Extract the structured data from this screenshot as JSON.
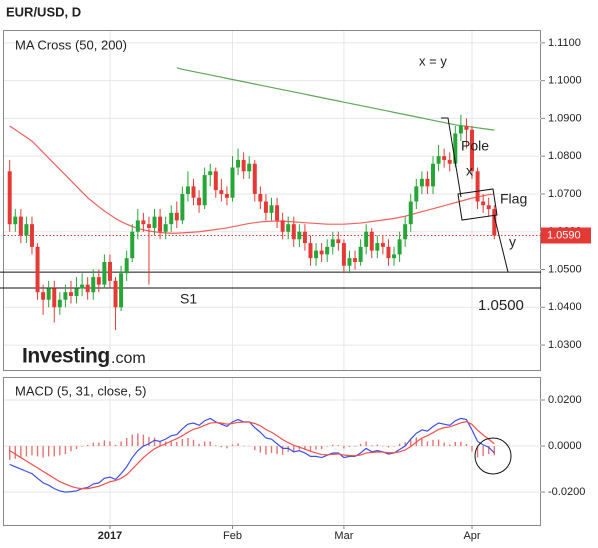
{
  "chart_data": [
    {
      "type": "candlestick",
      "title": "EUR/USD, D",
      "subtitle": "MA Cross (50, 200)",
      "ylim": [
        1.0234,
        1.1134
      ],
      "yticks": [
        {
          "value": 1.03,
          "label": "1.0300"
        },
        {
          "value": 1.04,
          "label": "1.0400"
        },
        {
          "value": 1.05,
          "label": "1.0500"
        },
        {
          "value": 1.06,
          "label": "1.0600"
        },
        {
          "value": 1.07,
          "label": "1.0700"
        },
        {
          "value": 1.08,
          "label": "1.0800"
        },
        {
          "value": 1.09,
          "label": "1.0900"
        },
        {
          "value": 1.1,
          "label": "1.1000"
        },
        {
          "value": 1.11,
          "label": "1.1100"
        }
      ],
      "grid": true,
      "up_color": "#26a637",
      "down_color": "#e53935",
      "candles": {
        "open": [
          1.076,
          1.062,
          1.064,
          1.059,
          1.062,
          1.056,
          1.044,
          1.042,
          1.045,
          1.04,
          1.042,
          1.044,
          1.043,
          1.045,
          1.046,
          1.044,
          1.048,
          1.046,
          1.052,
          1.047,
          1.04,
          1.049,
          1.053,
          1.06,
          1.063,
          1.062,
          1.061,
          1.064,
          1.06,
          1.062,
          1.065,
          1.063,
          1.07,
          1.072,
          1.069,
          1.067,
          1.075,
          1.076,
          1.071,
          1.07,
          1.069,
          1.077,
          1.079,
          1.076,
          1.078,
          1.07,
          1.068,
          1.065,
          1.067,
          1.063,
          1.06,
          1.062,
          1.058,
          1.06,
          1.057,
          1.053,
          1.055,
          1.054,
          1.056,
          1.058,
          1.057,
          1.051,
          1.053,
          1.052,
          1.056,
          1.06,
          1.055,
          1.057,
          1.056,
          1.053,
          1.054,
          1.058,
          1.062,
          1.068,
          1.072,
          1.074,
          1.072,
          1.078,
          1.08,
          1.079,
          1.078,
          1.086,
          1.088,
          1.087,
          1.076,
          1.068,
          1.067,
          1.066
        ],
        "high": [
          1.079,
          1.066,
          1.066,
          1.064,
          1.064,
          1.057,
          1.046,
          1.047,
          1.047,
          1.044,
          1.046,
          1.047,
          1.048,
          1.049,
          1.048,
          1.05,
          1.05,
          1.054,
          1.054,
          1.048,
          1.051,
          1.055,
          1.062,
          1.066,
          1.065,
          1.064,
          1.066,
          1.066,
          1.064,
          1.067,
          1.068,
          1.072,
          1.076,
          1.074,
          1.071,
          1.077,
          1.078,
          1.077,
          1.074,
          1.072,
          1.08,
          1.082,
          1.081,
          1.08,
          1.079,
          1.072,
          1.07,
          1.069,
          1.069,
          1.065,
          1.064,
          1.064,
          1.062,
          1.062,
          1.059,
          1.057,
          1.057,
          1.058,
          1.06,
          1.06,
          1.058,
          1.055,
          1.055,
          1.058,
          1.062,
          1.061,
          1.059,
          1.059,
          1.058,
          1.056,
          1.06,
          1.064,
          1.07,
          1.074,
          1.076,
          1.076,
          1.08,
          1.083,
          1.082,
          1.081,
          1.088,
          1.091,
          1.09,
          1.088,
          1.077,
          1.07,
          1.069,
          1.067
        ],
        "low": [
          1.06,
          1.06,
          1.057,
          1.057,
          1.054,
          1.042,
          1.038,
          1.04,
          1.036,
          1.038,
          1.04,
          1.041,
          1.041,
          1.043,
          1.042,
          1.042,
          1.044,
          1.045,
          1.045,
          1.034,
          1.039,
          1.047,
          1.052,
          1.058,
          1.06,
          1.046,
          1.059,
          1.058,
          1.058,
          1.06,
          1.061,
          1.062,
          1.068,
          1.067,
          1.065,
          1.066,
          1.072,
          1.069,
          1.068,
          1.067,
          1.068,
          1.075,
          1.074,
          1.074,
          1.068,
          1.066,
          1.063,
          1.063,
          1.061,
          1.058,
          1.058,
          1.056,
          1.056,
          1.055,
          1.051,
          1.051,
          1.052,
          1.052,
          1.054,
          1.055,
          1.049,
          1.049,
          1.05,
          1.051,
          1.054,
          1.053,
          1.053,
          1.054,
          1.051,
          1.051,
          1.052,
          1.056,
          1.06,
          1.066,
          1.07,
          1.07,
          1.07,
          1.076,
          1.077,
          1.076,
          1.077,
          1.084,
          1.082,
          1.074,
          1.066,
          1.065,
          1.064,
          1.058
        ],
        "close": [
          1.062,
          1.064,
          1.059,
          1.062,
          1.056,
          1.044,
          1.042,
          1.045,
          1.04,
          1.042,
          1.044,
          1.043,
          1.045,
          1.046,
          1.044,
          1.048,
          1.046,
          1.052,
          1.047,
          1.04,
          1.049,
          1.053,
          1.06,
          1.063,
          1.062,
          1.061,
          1.064,
          1.06,
          1.062,
          1.065,
          1.063,
          1.07,
          1.072,
          1.069,
          1.067,
          1.075,
          1.076,
          1.071,
          1.07,
          1.069,
          1.077,
          1.079,
          1.076,
          1.078,
          1.07,
          1.068,
          1.065,
          1.067,
          1.063,
          1.06,
          1.062,
          1.058,
          1.06,
          1.057,
          1.053,
          1.055,
          1.054,
          1.056,
          1.058,
          1.057,
          1.051,
          1.053,
          1.052,
          1.056,
          1.06,
          1.055,
          1.057,
          1.056,
          1.053,
          1.054,
          1.058,
          1.062,
          1.068,
          1.072,
          1.074,
          1.072,
          1.078,
          1.08,
          1.079,
          1.078,
          1.086,
          1.088,
          1.087,
          1.076,
          1.068,
          1.067,
          1.066,
          1.059
        ]
      },
      "series": [
        {
          "color": "#f0625e",
          "values": [
            1.088,
            1.087,
            1.086,
            1.085,
            1.084,
            1.0825,
            1.081,
            1.0795,
            1.078,
            1.0765,
            1.075,
            1.0735,
            1.072,
            1.0705,
            1.069,
            1.0678,
            1.0666,
            1.0655,
            1.0645,
            1.0635,
            1.0627,
            1.062,
            1.0614,
            1.0609,
            1.0605,
            1.0602,
            1.06,
            1.0598,
            1.0597,
            1.0596,
            1.0596,
            1.0597,
            1.0598,
            1.0599,
            1.06,
            1.0602,
            1.0604,
            1.0606,
            1.0608,
            1.061,
            1.0613,
            1.0616,
            1.0619,
            1.0622,
            1.0624,
            1.0626,
            1.0627,
            1.0628,
            1.0628,
            1.0628,
            1.0627,
            1.0626,
            1.0625,
            1.0624,
            1.0623,
            1.0622,
            1.0621,
            1.062,
            1.062,
            1.062,
            1.062,
            1.0621,
            1.0622,
            1.0623,
            1.0625,
            1.0627,
            1.0629,
            1.0631,
            1.0633,
            1.0635,
            1.0638,
            1.0641,
            1.0645,
            1.0649,
            1.0653,
            1.0657,
            1.0661,
            1.0665,
            1.0669,
            1.0673,
            1.0677,
            1.0681,
            1.0685,
            1.0689,
            1.0692,
            1.0695,
            1.0698,
            1.07
          ]
        },
        {
          "color": "#5fa85a",
          "values": [
            null,
            null,
            null,
            null,
            null,
            null,
            null,
            null,
            null,
            null,
            null,
            null,
            null,
            null,
            null,
            null,
            null,
            null,
            null,
            null,
            null,
            null,
            null,
            null,
            null,
            null,
            null,
            null,
            null,
            null,
            1.1034,
            1.103,
            1.1027,
            1.1024,
            1.1021,
            1.1018,
            1.1015,
            1.1012,
            1.1009,
            1.1006,
            1.1003,
            1.1,
            1.0997,
            1.0994,
            1.0991,
            1.0988,
            1.0985,
            1.0982,
            1.0979,
            1.0976,
            1.0973,
            1.097,
            1.0967,
            1.0964,
            1.0961,
            1.0958,
            1.0955,
            1.0952,
            1.0949,
            1.0946,
            1.0943,
            1.094,
            1.0937,
            1.0934,
            1.0931,
            1.0928,
            1.0925,
            1.0922,
            1.0919,
            1.0916,
            1.0913,
            1.091,
            1.0907,
            1.0904,
            1.0901,
            1.0898,
            1.0895,
            1.0892,
            1.0889,
            1.0886,
            1.0883,
            1.0881,
            1.0879,
            1.0877,
            1.0875,
            1.0873,
            1.0871,
            1.0869
          ]
        }
      ],
      "last_price": {
        "value": 1.059,
        "label": "1.0590",
        "color": "#e53935"
      },
      "levels": [
        1.0493,
        1.0451
      ],
      "annotations": [
        "x = y",
        "Pole",
        "x",
        "Flag",
        "y",
        "S1",
        "1.0500"
      ],
      "brand": {
        "name": "Investing",
        "suffix": ".com"
      }
    },
    {
      "type": "macd",
      "subtitle": "MACD (5, 31, close, 5)",
      "categories": [
        null,
        null,
        null,
        null,
        null,
        null,
        null,
        null,
        null,
        null,
        null,
        null,
        null,
        null,
        null,
        null,
        null,
        null,
        "2017",
        null,
        null,
        null,
        null,
        null,
        null,
        null,
        null,
        null,
        null,
        null,
        null,
        null,
        null,
        null,
        null,
        null,
        null,
        null,
        null,
        null,
        "Feb",
        null,
        null,
        null,
        null,
        null,
        null,
        null,
        null,
        null,
        null,
        null,
        null,
        null,
        null,
        null,
        null,
        null,
        null,
        null,
        "Mar",
        null,
        null,
        null,
        null,
        null,
        null,
        null,
        null,
        null,
        null,
        null,
        null,
        null,
        null,
        null,
        null,
        null,
        null,
        null,
        null,
        null,
        null,
        "Apr",
        null,
        null,
        null,
        null
      ],
      "ylim": [
        -0.0343,
        0.03
      ],
      "yticks": [
        {
          "value": -0.02,
          "label": "-0.0200"
        },
        {
          "value": 0,
          "label": "0.0000"
        },
        {
          "value": 0.02,
          "label": "0.0200"
        }
      ],
      "grid": true,
      "series": [
        {
          "color": "#3f51e8",
          "values": [
            -0.008,
            -0.009,
            -0.01,
            -0.011,
            -0.012,
            -0.014,
            -0.016,
            -0.017,
            -0.0185,
            -0.0195,
            -0.02,
            -0.0198,
            -0.0195,
            -0.0185,
            -0.018,
            -0.0165,
            -0.016,
            -0.014,
            -0.0135,
            -0.0145,
            -0.012,
            -0.009,
            -0.005,
            -0.002,
            0.0,
            0.001,
            0.0025,
            0.002,
            0.003,
            0.0045,
            0.005,
            0.0075,
            0.0095,
            0.01,
            0.009,
            0.011,
            0.012,
            0.0105,
            0.0095,
            0.0085,
            0.0105,
            0.0115,
            0.0105,
            0.0105,
            0.008,
            0.006,
            0.0035,
            0.003,
            0.001,
            -0.001,
            -0.001,
            -0.0025,
            -0.002,
            -0.003,
            -0.0045,
            -0.0045,
            -0.005,
            -0.004,
            -0.003,
            -0.003,
            -0.005,
            -0.0045,
            -0.0045,
            -0.003,
            -0.001,
            -0.0025,
            -0.002,
            -0.0025,
            -0.0035,
            -0.003,
            -0.0015,
            0.0,
            0.003,
            0.0055,
            0.007,
            0.0065,
            0.0085,
            0.01,
            0.0095,
            0.009,
            0.011,
            0.012,
            0.0115,
            0.007,
            0.002,
            0.0005,
            -0.0005,
            -0.003
          ]
        },
        {
          "color": "#f0504c",
          "values": [
            -0.002,
            -0.0035,
            -0.005,
            -0.0065,
            -0.008,
            -0.0095,
            -0.011,
            -0.0125,
            -0.014,
            -0.0155,
            -0.0165,
            -0.0175,
            -0.0182,
            -0.0185,
            -0.0185,
            -0.018,
            -0.0175,
            -0.0165,
            -0.0155,
            -0.015,
            -0.014,
            -0.0125,
            -0.01,
            -0.0075,
            -0.005,
            -0.003,
            -0.0012,
            0.0,
            0.001,
            0.0022,
            0.0032,
            0.0045,
            0.006,
            0.0073,
            0.008,
            0.009,
            0.01,
            0.0102,
            0.01,
            0.0095,
            0.0098,
            0.0103,
            0.0104,
            0.0104,
            0.0098,
            0.0088,
            0.0072,
            0.006,
            0.0045,
            0.0028,
            0.0015,
            0.0003,
            -0.0005,
            -0.0013,
            -0.0023,
            -0.003,
            -0.0037,
            -0.0038,
            -0.0036,
            -0.0034,
            -0.0039,
            -0.0041,
            -0.0042,
            -0.0039,
            -0.003,
            -0.0028,
            -0.0026,
            -0.0026,
            -0.0029,
            -0.0029,
            -0.0025,
            -0.0017,
            -0.0002,
            0.0017,
            0.0035,
            0.0045,
            0.0058,
            0.0072,
            0.008,
            0.0083,
            0.0092,
            0.0101,
            0.0106,
            0.0094,
            0.0069,
            0.0048,
            0.003,
            0.001
          ]
        }
      ],
      "histogram": {
        "color": "#e57373",
        "values": [
          -0.006,
          -0.0055,
          -0.005,
          -0.0045,
          -0.004,
          -0.0045,
          -0.005,
          -0.0045,
          -0.0045,
          -0.004,
          -0.0035,
          -0.0023,
          -0.0013,
          0.0,
          0.0005,
          0.0015,
          0.0015,
          0.0025,
          0.002,
          0.0005,
          0.002,
          0.0035,
          0.005,
          0.0055,
          0.005,
          0.004,
          0.0037,
          0.002,
          0.002,
          0.0023,
          0.0018,
          0.003,
          0.0035,
          0.0027,
          0.001,
          0.002,
          0.002,
          0.0003,
          -0.0005,
          -0.001,
          0.0007,
          0.0012,
          0.0001,
          0.0001,
          -0.0018,
          -0.0028,
          -0.0037,
          -0.003,
          -0.0035,
          -0.0038,
          -0.0025,
          -0.0028,
          -0.0015,
          -0.0017,
          -0.0022,
          -0.0015,
          -0.0013,
          -0.0002,
          0.0006,
          0.0004,
          -0.0011,
          -0.0004,
          -0.0003,
          0.0009,
          0.002,
          0.0003,
          0.0006,
          0.0001,
          -0.0006,
          -0.0001,
          0.001,
          0.0017,
          0.0032,
          0.0038,
          0.0035,
          0.002,
          0.0027,
          0.0028,
          0.0015,
          0.0007,
          0.0018,
          0.0019,
          0.0009,
          -0.0024,
          -0.0049,
          -0.0043,
          -0.0035,
          -0.004
        ]
      }
    }
  ]
}
